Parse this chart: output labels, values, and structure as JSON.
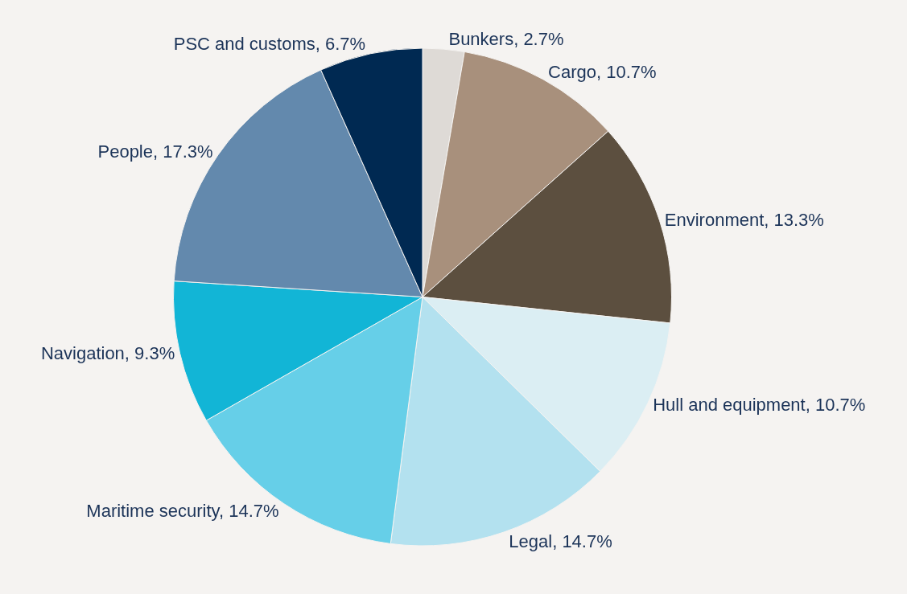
{
  "chart_data": {
    "type": "pie",
    "categories": [
      "Bunkers",
      "Cargo",
      "Environment",
      "Hull and equipment",
      "Legal",
      "Maritime security",
      "Navigation",
      "People",
      "PSC and customs"
    ],
    "values": [
      2.7,
      10.7,
      13.3,
      10.7,
      14.7,
      14.7,
      9.3,
      17.3,
      6.7
    ],
    "value_labels": [
      "2.7%",
      "10.7%",
      "13.3%",
      "10.7%",
      "14.7%",
      "14.7%",
      "9.3%",
      "17.3%",
      "6.7%"
    ],
    "colors": [
      "#dedad6",
      "#a8907c",
      "#5c4f3f",
      "#dbeef3",
      "#b3e1ef",
      "#66cfe8",
      "#12b5d6",
      "#6389ad",
      "#002952"
    ],
    "legend": false
  }
}
